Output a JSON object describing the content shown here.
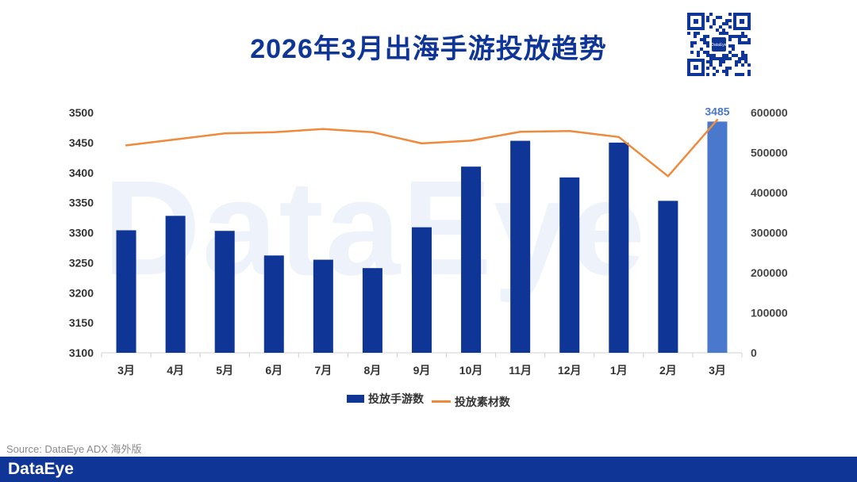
{
  "title": "2026年3月出海手游投放趋势",
  "watermark": "DataEye",
  "source": "Source: DataEye ADX 海外版",
  "footer_logo": "DataEye",
  "qr": {
    "center_label": "DataEye"
  },
  "colors": {
    "bar": "#0f3597",
    "bar_highlight": "#4a78cd",
    "line": "#ef8a3c",
    "title": "#0f3597"
  },
  "chart_data": {
    "type": "bar",
    "categories": [
      "3月",
      "4月",
      "5月",
      "6月",
      "7月",
      "8月",
      "9月",
      "10月",
      "11月",
      "12月",
      "1月",
      "2月",
      "3月"
    ],
    "series": [
      {
        "name": "投放手游数",
        "axis": "left",
        "type": "bar",
        "values": [
          3304,
          3328,
          3303,
          3262,
          3255,
          3241,
          3309,
          3410,
          3453,
          3392,
          3450,
          3353,
          3485
        ]
      },
      {
        "name": "投放素材数",
        "axis": "right",
        "type": "line",
        "values": [
          518000,
          533000,
          548000,
          551000,
          559000,
          551000,
          523000,
          530000,
          552000,
          554000,
          539000,
          441000,
          582000
        ]
      }
    ],
    "highlight_index": 12,
    "highlight_label": "3485",
    "left_axis": {
      "min": 3100,
      "max": 3500,
      "ticks": [
        3100,
        3150,
        3200,
        3250,
        3300,
        3350,
        3400,
        3450,
        3500
      ]
    },
    "right_axis": {
      "min": 0,
      "max": 600000,
      "ticks": [
        0,
        100000,
        200000,
        300000,
        400000,
        500000,
        600000
      ]
    },
    "legend": [
      "投放手游数",
      "投放素材数"
    ]
  }
}
